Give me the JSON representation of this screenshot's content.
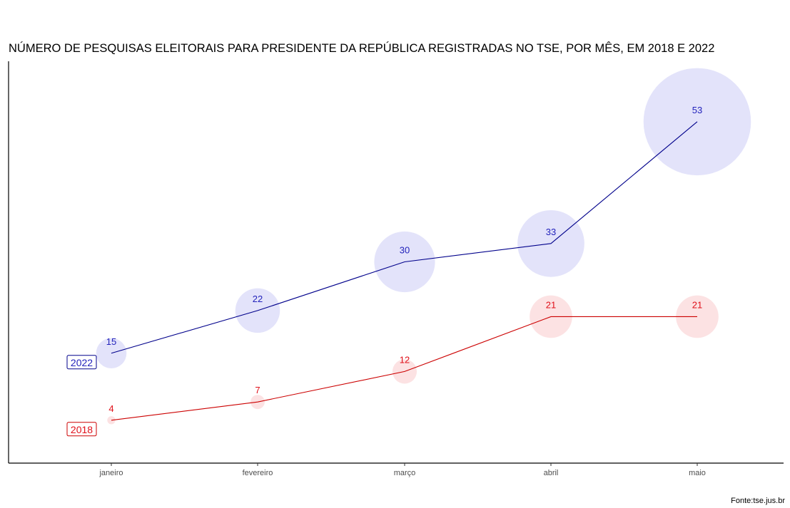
{
  "chart_data": {
    "type": "line",
    "title": "NÚMERO DE PESQUISAS ELEITORAIS PARA PRESIDENTE DA REPÚBLICA REGISTRADAS NO TSE, POR MÊS, EM 2018 E 2022",
    "xlabel": "",
    "ylabel": "",
    "categories": [
      "janeiro",
      "fevereiro",
      "março",
      "abril",
      "maio"
    ],
    "series": [
      {
        "name": "2022",
        "values": [
          15,
          22,
          30,
          33,
          53
        ],
        "line_color": "#00008B",
        "label_color": "#2222BB",
        "bubble_color": "#E2E2FA"
      },
      {
        "name": "2018",
        "values": [
          4,
          7,
          12,
          21,
          21
        ],
        "line_color": "#CC0000",
        "label_color": "#E0101A",
        "bubble_color": "#FCE0E2"
      }
    ],
    "bubble_size_encodes": "value",
    "y_axis_ticks_shown": false,
    "grid": false,
    "legend": "direct-labels-left",
    "caption": "Fonte:tse.jus.br"
  }
}
